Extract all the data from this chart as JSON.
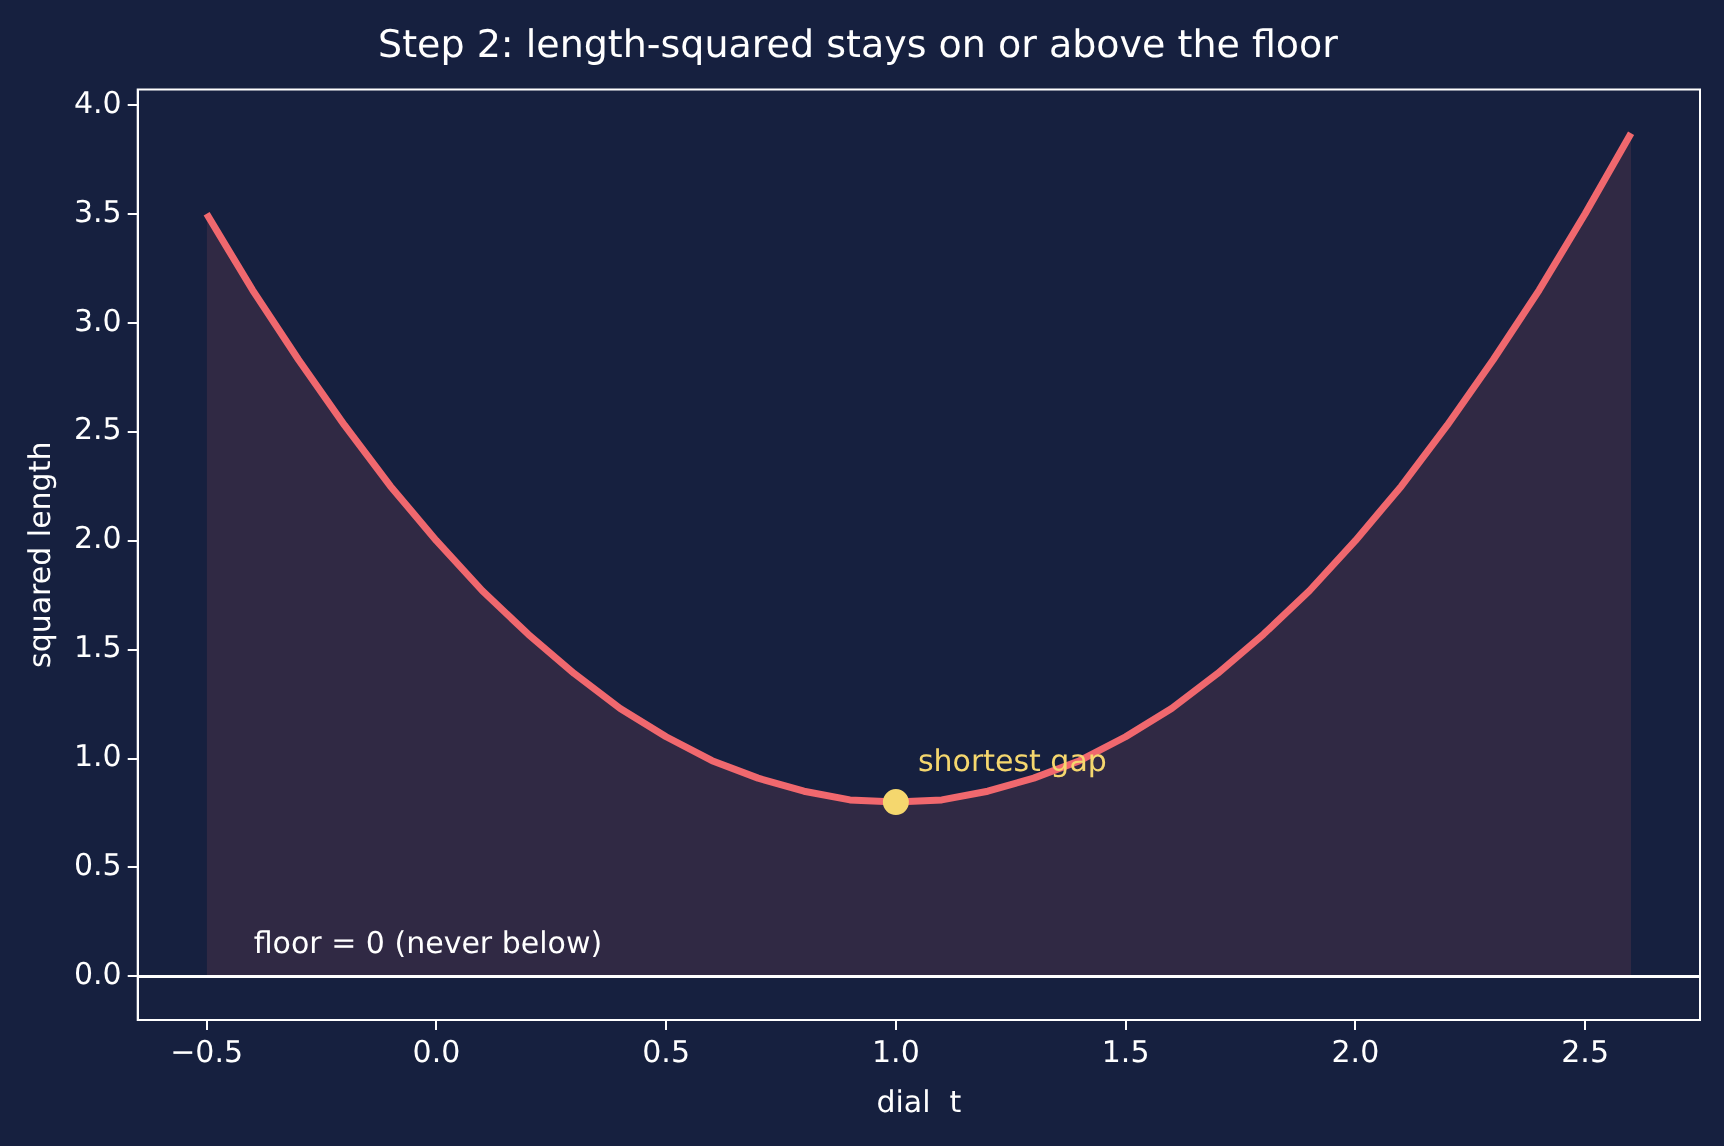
{
  "chart_data": {
    "type": "area",
    "title": "Step 2: length-squared stays on or above the floor",
    "xlabel": "dial  t",
    "ylabel": "squared length",
    "xlim": [
      -0.65,
      2.75
    ],
    "xticks": [
      {
        "value": -0.5,
        "label": "−0.5"
      },
      {
        "value": 0,
        "label": "0.0"
      },
      0.5,
      {
        "value": 1,
        "label": "1.0"
      },
      1.5,
      {
        "value": 2,
        "label": "2.0"
      },
      2.5
    ],
    "ylim": [
      -0.2,
      4.07
    ],
    "yticks": [
      {
        "value": 0,
        "label": "0.0"
      },
      0.5,
      {
        "value": 1,
        "label": "1.0"
      },
      1.5,
      {
        "value": 2,
        "label": "2.0"
      },
      2.5,
      {
        "value": 3,
        "label": "3.0"
      },
      3.5,
      {
        "value": 4,
        "label": "4.0"
      }
    ],
    "series": [
      {
        "color": "#f0686e",
        "marker": "none",
        "x": [
          -0.5,
          -0.4,
          -0.3,
          -0.2,
          -0.1,
          0,
          0.1,
          0.2,
          0.3,
          0.4,
          0.5,
          0.6,
          0.7,
          0.8,
          0.9,
          1.0,
          1.1,
          1.2,
          1.3,
          1.4,
          1.5,
          1.6,
          1.7,
          1.8,
          1.9,
          2.0,
          2.1,
          2.2,
          2.3,
          2.4,
          2.5,
          2.6
        ],
        "values": [
          3.5,
          3.15,
          2.83,
          2.53,
          2.25,
          2.0,
          1.77,
          1.57,
          1.39,
          1.23,
          1.1,
          0.99,
          0.91,
          0.85,
          0.81,
          0.8,
          0.81,
          0.85,
          0.91,
          0.99,
          1.1,
          1.23,
          1.39,
          1.57,
          1.77,
          2.0,
          2.25,
          2.53,
          2.83,
          3.15,
          3.5,
          3.87
        ]
      },
      {
        "type": "scatter",
        "color": "#f5d76e",
        "marker": "circle",
        "x": [
          1.0
        ],
        "values": [
          0.8
        ]
      }
    ],
    "ref_lines": [
      {
        "axis": "y",
        "value": 0,
        "label": "floor = 0 (never below)",
        "color": "#ffffff"
      }
    ],
    "annotations": [
      {
        "text": "shortest gap",
        "x": 1.0,
        "y": 0.8
      }
    ],
    "legend": false
  }
}
